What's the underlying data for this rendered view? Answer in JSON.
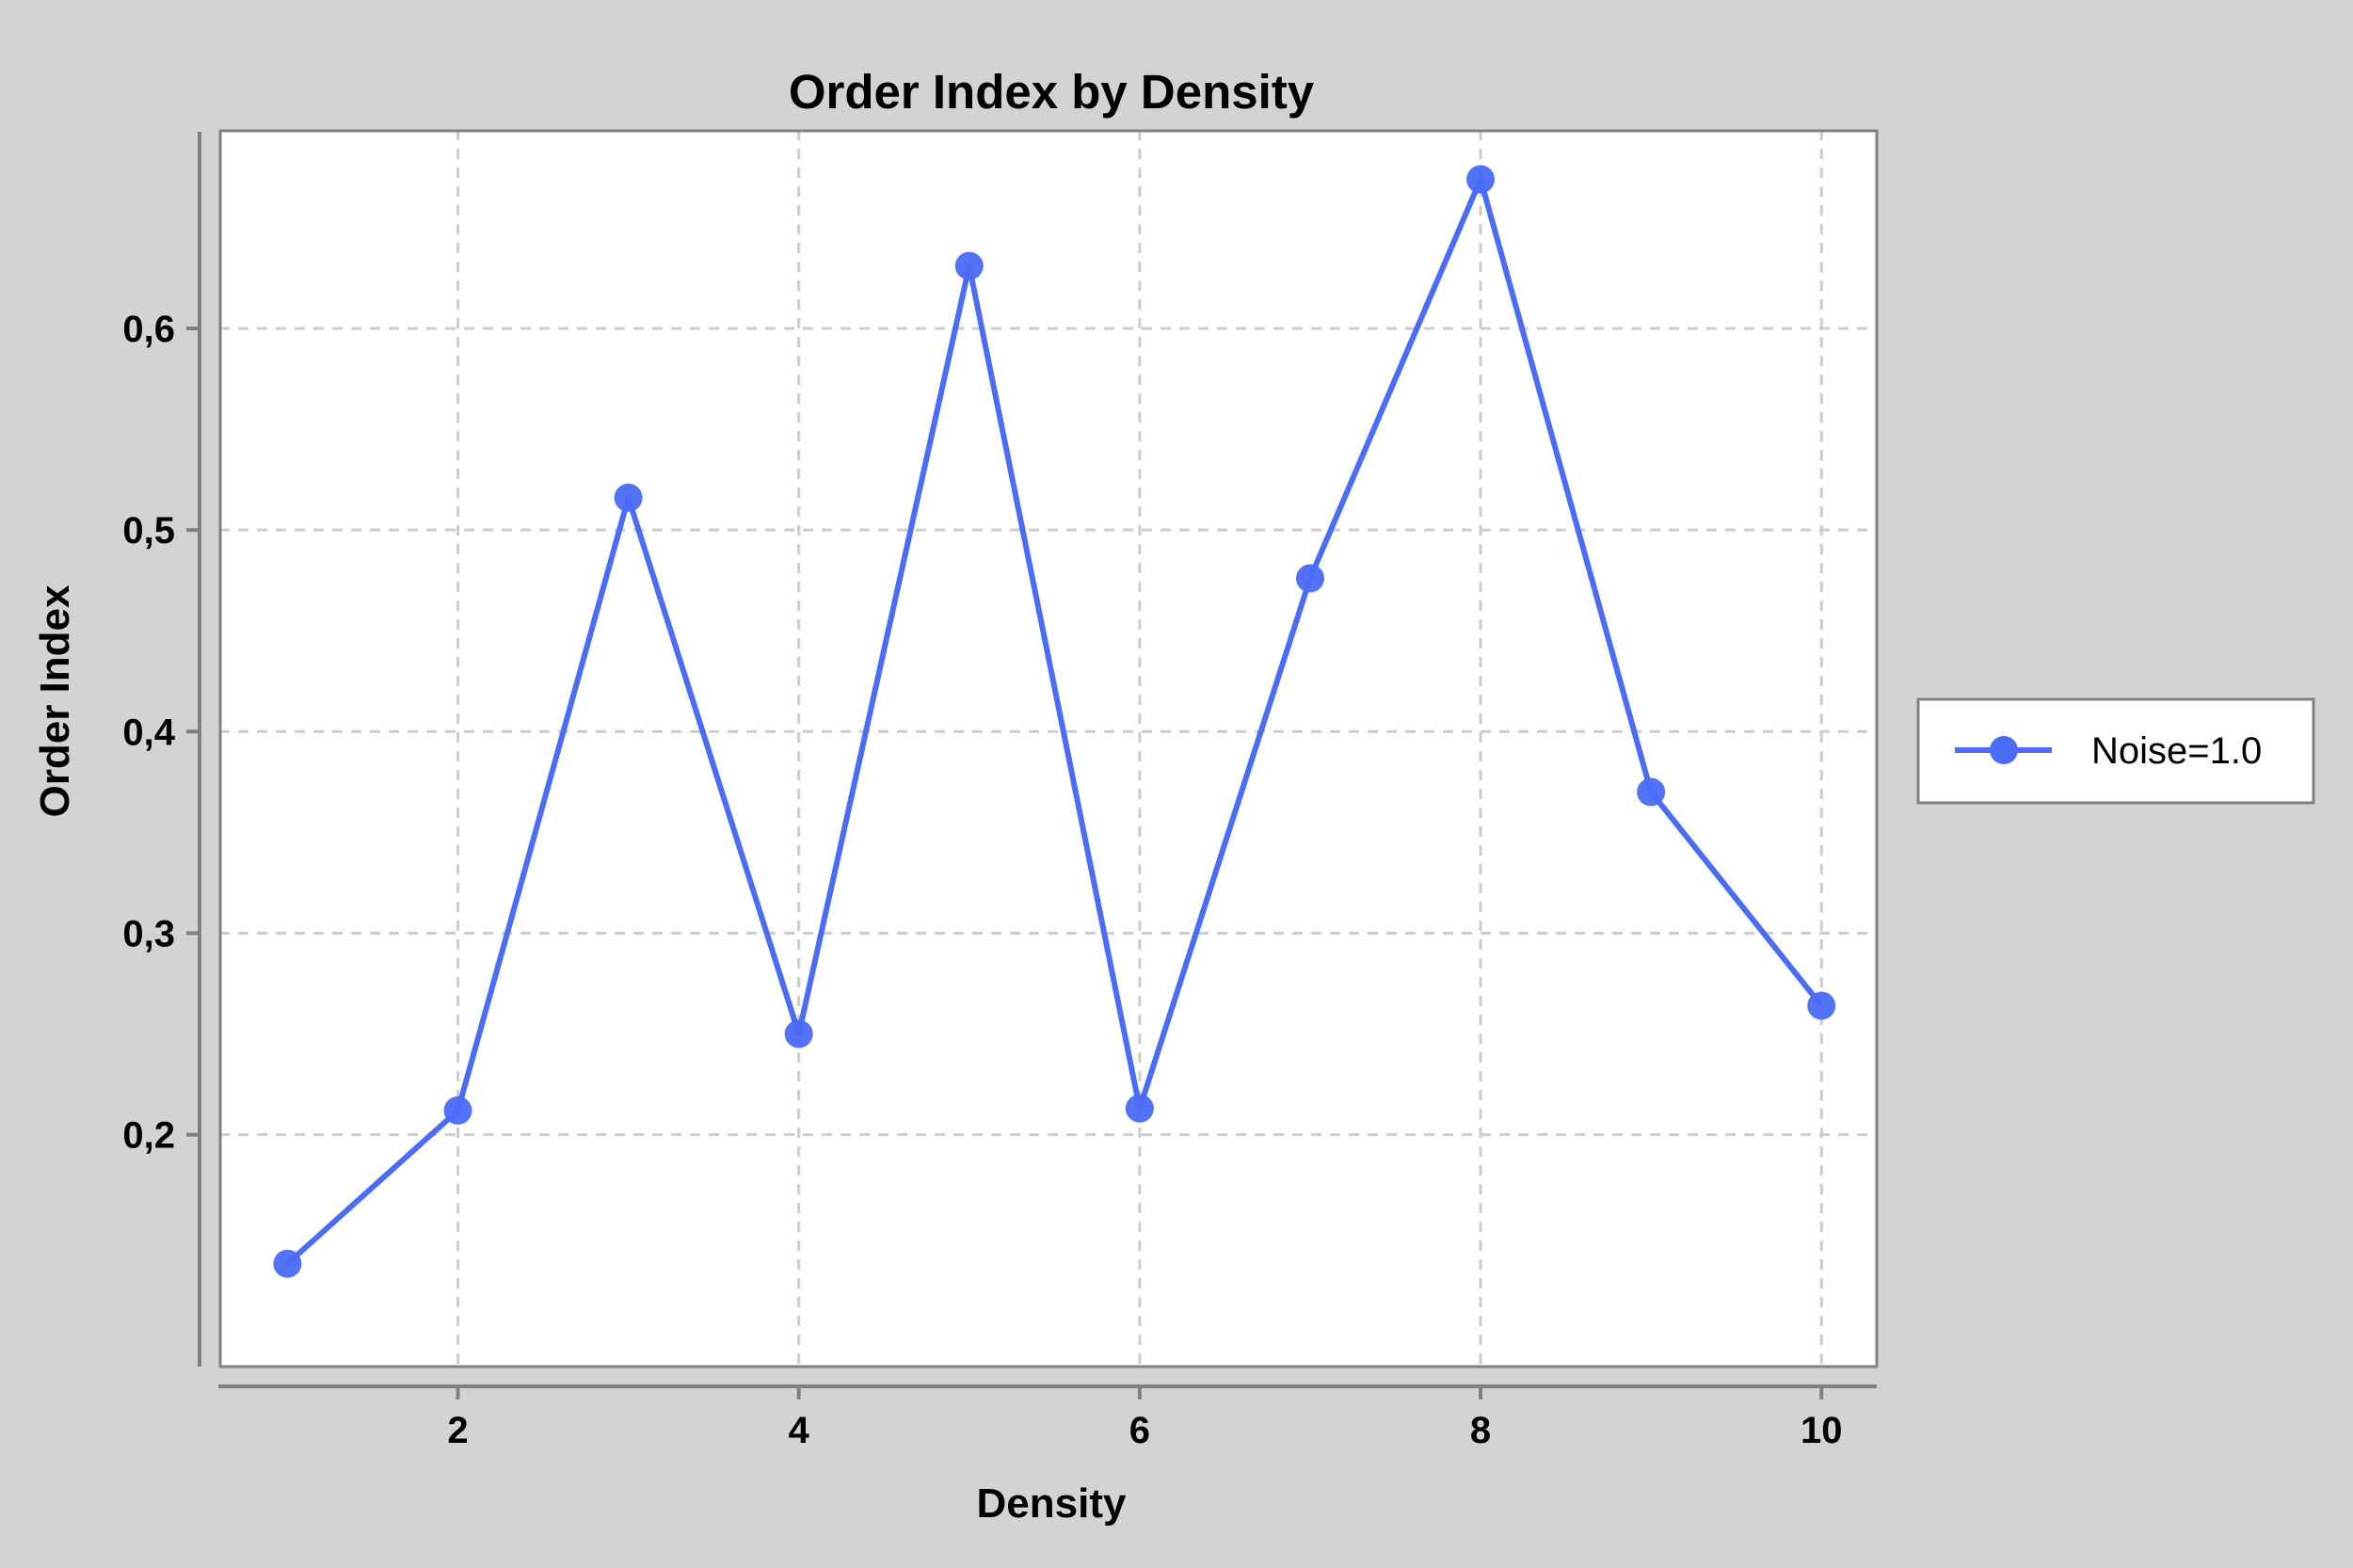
{
  "chart_data": {
    "type": "line",
    "title": "Order Index by Density",
    "xlabel": "Density",
    "ylabel": "Order Index",
    "x": [
      1,
      2,
      3,
      4,
      5,
      6,
      7,
      8,
      9,
      10
    ],
    "series": [
      {
        "name": "Noise=1.0",
        "color": "#4a6cf7",
        "values": [
          0.136,
          0.212,
          0.516,
          0.25,
          0.631,
          0.213,
          0.476,
          0.674,
          0.37,
          0.264
        ]
      }
    ],
    "xlim": [
      0.6,
      10.33
    ],
    "ylim": [
      0.0845,
      0.6985
    ],
    "xticks": [
      2,
      4,
      6,
      8,
      10
    ],
    "xtick_labels": [
      "2",
      "4",
      "6",
      "8",
      "10"
    ],
    "yticks": [
      0.2,
      0.3,
      0.4,
      0.5,
      0.6
    ],
    "ytick_labels": [
      "0,2",
      "0,3",
      "0,4",
      "0,5",
      "0,6"
    ],
    "grid": true,
    "legend_position": "right"
  }
}
